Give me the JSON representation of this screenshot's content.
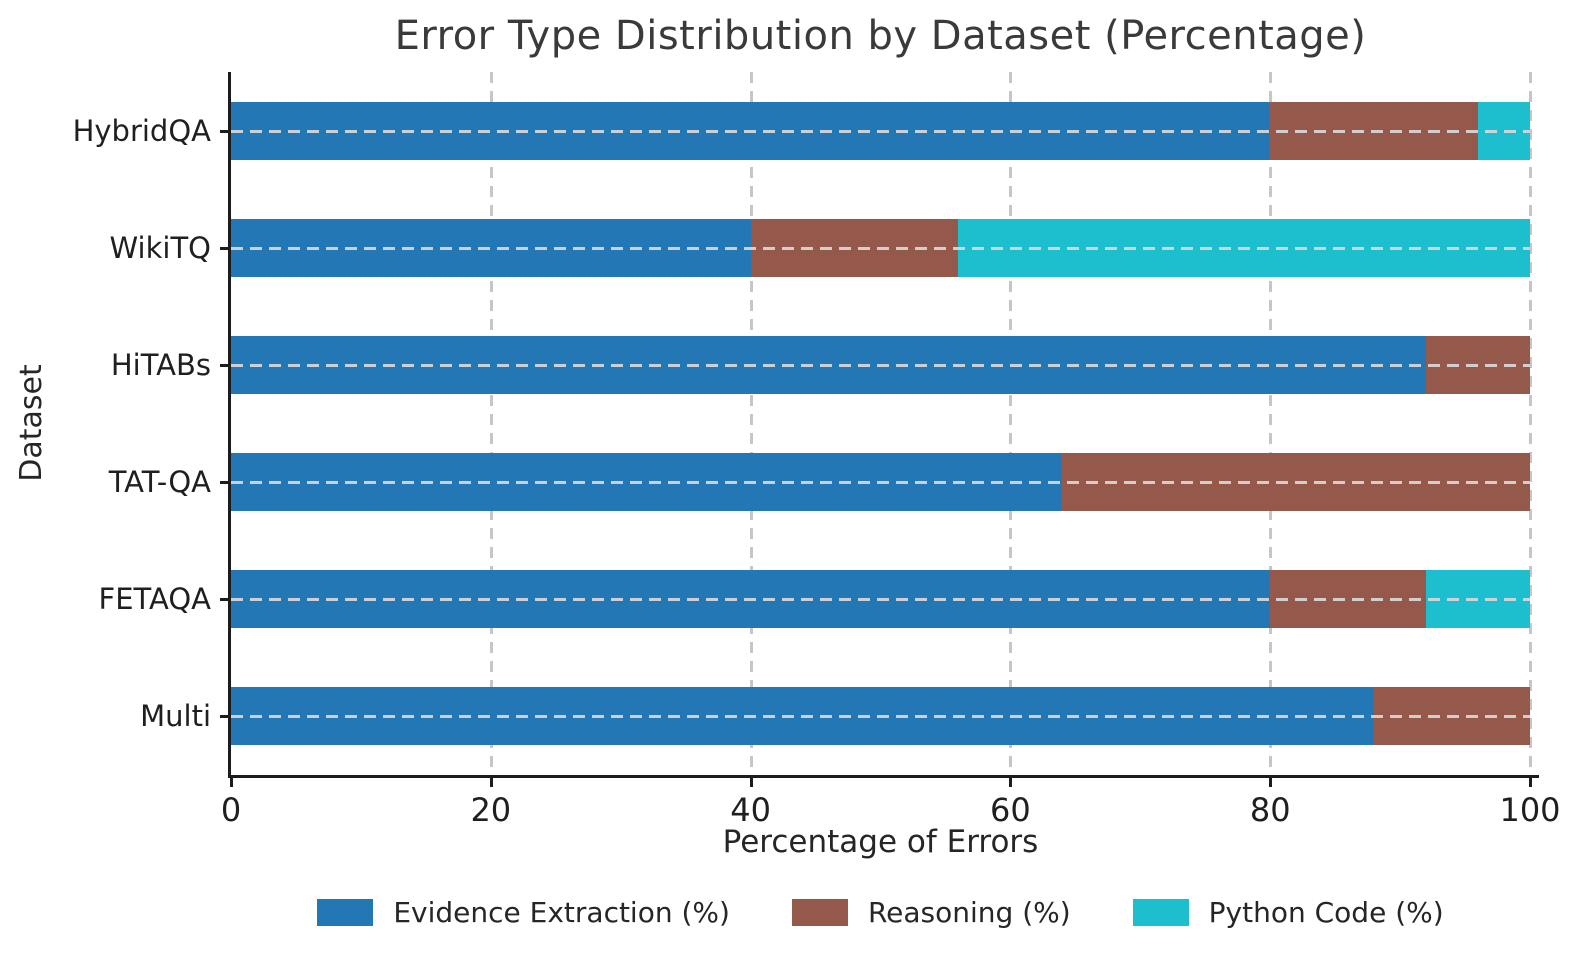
{
  "chart_data": {
    "type": "bar",
    "orientation": "horizontal",
    "stacked": true,
    "title": "Error Type Distribution by Dataset (Percentage)",
    "xlabel": "Percentage of Errors",
    "ylabel": "Dataset",
    "categories": [
      "HybridQA",
      "WikiTQ",
      "HiTABs",
      "TAT-QA",
      "FETAQA",
      "Multi"
    ],
    "series": [
      {
        "name": "Evidence Extraction (%)",
        "color": "#2277b4",
        "values": [
          80,
          40,
          92,
          64,
          80,
          88
        ]
      },
      {
        "name": "Reasoning (%)",
        "color": "#95594b",
        "values": [
          16,
          16,
          8,
          36,
          12,
          12
        ]
      },
      {
        "name": "Python Code (%)",
        "color": "#1dbecd",
        "values": [
          4,
          44,
          0,
          0,
          8,
          0
        ]
      }
    ],
    "xlim": [
      0,
      100
    ],
    "xticks": [
      0,
      20,
      40,
      60,
      80,
      100
    ],
    "grid": true,
    "grid_style": "dashed",
    "legend_position": "bottom"
  }
}
